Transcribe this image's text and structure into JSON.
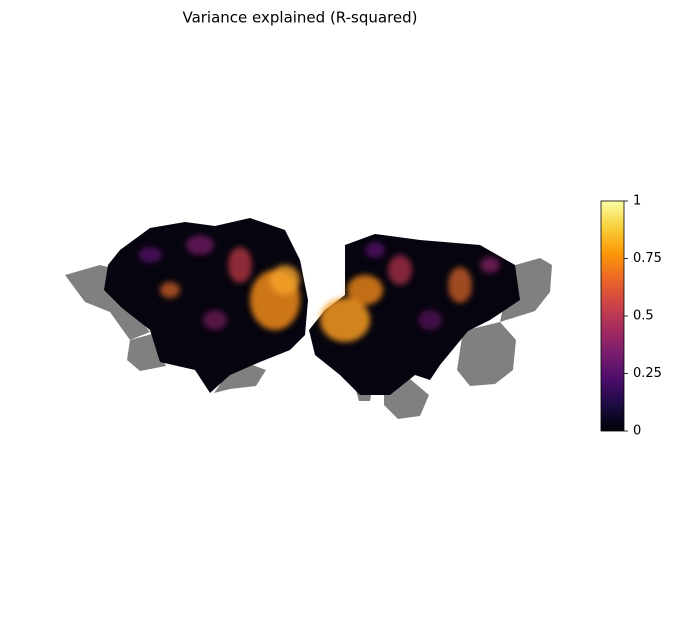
{
  "chart_data": {
    "type": "flatmap",
    "title": "Variance explained (R-squared)",
    "colormap": "inferno",
    "clim": [
      0,
      1
    ],
    "cticks": [
      0,
      0.25,
      0.5,
      0.75,
      1
    ]
  }
}
